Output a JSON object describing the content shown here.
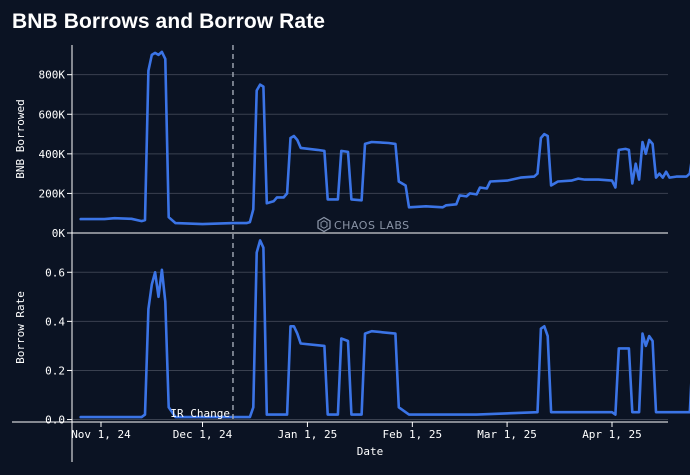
{
  "title": "BNB Borrows and Borrow Rate",
  "watermark": "CHAOS LABS",
  "colors": {
    "background": "#0b1323",
    "line": "#3b74e6",
    "grid": "#3a4150",
    "axis": "#ffffff"
  },
  "chart_data": [
    {
      "type": "line",
      "ylabel": "BNB Borrowed",
      "ylim": [
        0,
        950000
      ],
      "yticks": [
        0,
        200000,
        400000,
        600000,
        800000
      ],
      "ytick_labels": [
        "0K",
        "200K",
        "400K",
        "600K",
        "800K"
      ],
      "grid": true,
      "series": [
        {
          "points": [
            [
              "2024-10-26",
              70000
            ],
            [
              "2024-11-02",
              70000
            ],
            [
              "2024-11-05",
              75000
            ],
            [
              "2024-11-10",
              72000
            ],
            [
              "2024-11-13",
              60000
            ],
            [
              "2024-11-14",
              65000
            ],
            [
              "2024-11-15",
              820000
            ],
            [
              "2024-11-16",
              900000
            ],
            [
              "2024-11-17",
              910000
            ],
            [
              "2024-11-18",
              900000
            ],
            [
              "2024-11-19",
              915000
            ],
            [
              "2024-11-20",
              880000
            ],
            [
              "2024-11-21",
              80000
            ],
            [
              "2024-11-23",
              50000
            ],
            [
              "2024-12-01",
              45000
            ],
            [
              "2024-12-10",
              50000
            ],
            [
              "2024-12-14",
              50000
            ],
            [
              "2024-12-15",
              55000
            ],
            [
              "2024-12-16",
              120000
            ],
            [
              "2024-12-17",
              720000
            ],
            [
              "2024-12-18",
              750000
            ],
            [
              "2024-12-19",
              740000
            ],
            [
              "2024-12-20",
              150000
            ],
            [
              "2024-12-22",
              160000
            ],
            [
              "2024-12-23",
              180000
            ],
            [
              "2024-12-25",
              180000
            ],
            [
              "2024-12-26",
              200000
            ],
            [
              "2024-12-27",
              480000
            ],
            [
              "2024-12-28",
              490000
            ],
            [
              "2024-12-29",
              470000
            ],
            [
              "2024-12-30",
              430000
            ],
            [
              "2025-01-04",
              420000
            ],
            [
              "2025-01-06",
              415000
            ],
            [
              "2025-01-07",
              170000
            ],
            [
              "2025-01-10",
              170000
            ],
            [
              "2025-01-11",
              415000
            ],
            [
              "2025-01-13",
              410000
            ],
            [
              "2025-01-14",
              170000
            ],
            [
              "2025-01-17",
              165000
            ],
            [
              "2025-01-18",
              450000
            ],
            [
              "2025-01-20",
              460000
            ],
            [
              "2025-01-25",
              455000
            ],
            [
              "2025-01-27",
              450000
            ],
            [
              "2025-01-28",
              260000
            ],
            [
              "2025-01-30",
              240000
            ],
            [
              "2025-01-31",
              130000
            ],
            [
              "2025-02-05",
              135000
            ],
            [
              "2025-02-10",
              130000
            ],
            [
              "2025-02-11",
              140000
            ],
            [
              "2025-02-14",
              145000
            ],
            [
              "2025-02-15",
              190000
            ],
            [
              "2025-02-17",
              185000
            ],
            [
              "2025-02-18",
              200000
            ],
            [
              "2025-02-20",
              195000
            ],
            [
              "2025-02-21",
              230000
            ],
            [
              "2025-02-23",
              225000
            ],
            [
              "2025-02-24",
              260000
            ],
            [
              "2025-03-01",
              265000
            ],
            [
              "2025-03-05",
              280000
            ],
            [
              "2025-03-09",
              285000
            ],
            [
              "2025-03-10",
              300000
            ],
            [
              "2025-03-11",
              480000
            ],
            [
              "2025-03-12",
              500000
            ],
            [
              "2025-03-13",
              490000
            ],
            [
              "2025-03-14",
              240000
            ],
            [
              "2025-03-16",
              260000
            ],
            [
              "2025-03-20",
              265000
            ],
            [
              "2025-03-22",
              275000
            ],
            [
              "2025-03-24",
              270000
            ],
            [
              "2025-03-28",
              270000
            ],
            [
              "2025-04-01",
              265000
            ],
            [
              "2025-04-02",
              230000
            ],
            [
              "2025-04-03",
              420000
            ],
            [
              "2025-04-05",
              425000
            ],
            [
              "2025-04-06",
              420000
            ],
            [
              "2025-04-07",
              250000
            ],
            [
              "2025-04-08",
              350000
            ],
            [
              "2025-04-09",
              270000
            ],
            [
              "2025-04-10",
              460000
            ],
            [
              "2025-04-11",
              400000
            ],
            [
              "2025-04-12",
              470000
            ],
            [
              "2025-04-13",
              450000
            ],
            [
              "2025-04-14",
              280000
            ],
            [
              "2025-04-15",
              300000
            ],
            [
              "2025-04-16",
              280000
            ],
            [
              "2025-04-17",
              310000
            ],
            [
              "2025-04-18",
              280000
            ],
            [
              "2025-04-20",
              285000
            ],
            [
              "2025-04-23",
              285000
            ],
            [
              "2025-04-24",
              300000
            ],
            [
              "2025-04-25",
              420000
            ],
            [
              "2025-04-26",
              460000
            ],
            [
              "2025-04-27",
              430000
            ],
            [
              "2025-04-28",
              445000
            ]
          ]
        }
      ]
    },
    {
      "type": "line",
      "ylabel": "Borrow Rate",
      "xlabel": "Date",
      "ylim": [
        -0.01,
        0.76
      ],
      "yticks": [
        0.0,
        0.2,
        0.4,
        0.6
      ],
      "ytick_labels": [
        "0.0",
        "0.2",
        "0.4",
        "0.6"
      ],
      "xticks": [
        "2024-11-01",
        "2024-12-01",
        "2025-01-01",
        "2025-02-01",
        "2025-03-01",
        "2025-04-01"
      ],
      "xtick_labels": [
        "Nov 1, 24",
        "Dec 1, 24",
        "Jan 1, 25",
        "Feb 1, 25",
        "Mar 1, 25",
        "Apr 1, 25"
      ],
      "grid": true,
      "annotations": [
        {
          "date": "2024-12-10",
          "label": "IR Change",
          "style": "dashed-vertical"
        }
      ],
      "series": [
        {
          "points": [
            [
              "2024-10-26",
              0.01
            ],
            [
              "2024-11-13",
              0.01
            ],
            [
              "2024-11-14",
              0.02
            ],
            [
              "2024-11-15",
              0.45
            ],
            [
              "2024-11-16",
              0.55
            ],
            [
              "2024-11-17",
              0.6
            ],
            [
              "2024-11-18",
              0.5
            ],
            [
              "2024-11-19",
              0.61
            ],
            [
              "2024-11-20",
              0.48
            ],
            [
              "2024-11-21",
              0.05
            ],
            [
              "2024-11-23",
              0.01
            ],
            [
              "2024-12-15",
              0.01
            ],
            [
              "2024-12-16",
              0.05
            ],
            [
              "2024-12-17",
              0.68
            ],
            [
              "2024-12-18",
              0.73
            ],
            [
              "2024-12-19",
              0.7
            ],
            [
              "2024-12-20",
              0.02
            ],
            [
              "2024-12-26",
              0.02
            ],
            [
              "2024-12-27",
              0.38
            ],
            [
              "2024-12-28",
              0.38
            ],
            [
              "2024-12-29",
              0.35
            ],
            [
              "2024-12-30",
              0.31
            ],
            [
              "2025-01-06",
              0.3
            ],
            [
              "2025-01-07",
              0.02
            ],
            [
              "2025-01-10",
              0.02
            ],
            [
              "2025-01-11",
              0.33
            ],
            [
              "2025-01-13",
              0.32
            ],
            [
              "2025-01-14",
              0.02
            ],
            [
              "2025-01-17",
              0.02
            ],
            [
              "2025-01-18",
              0.35
            ],
            [
              "2025-01-20",
              0.36
            ],
            [
              "2025-01-27",
              0.35
            ],
            [
              "2025-01-28",
              0.05
            ],
            [
              "2025-01-31",
              0.02
            ],
            [
              "2025-02-20",
              0.02
            ],
            [
              "2025-03-10",
              0.03
            ],
            [
              "2025-03-11",
              0.37
            ],
            [
              "2025-03-12",
              0.38
            ],
            [
              "2025-03-13",
              0.34
            ],
            [
              "2025-03-14",
              0.03
            ],
            [
              "2025-04-01",
              0.03
            ],
            [
              "2025-04-02",
              0.02
            ],
            [
              "2025-04-03",
              0.29
            ],
            [
              "2025-04-06",
              0.29
            ],
            [
              "2025-04-07",
              0.03
            ],
            [
              "2025-04-09",
              0.03
            ],
            [
              "2025-04-10",
              0.35
            ],
            [
              "2025-04-11",
              0.3
            ],
            [
              "2025-04-12",
              0.34
            ],
            [
              "2025-04-13",
              0.32
            ],
            [
              "2025-04-14",
              0.03
            ],
            [
              "2025-04-24",
              0.03
            ],
            [
              "2025-04-25",
              0.3
            ],
            [
              "2025-04-26",
              0.33
            ],
            [
              "2025-04-27",
              0.29
            ],
            [
              "2025-04-28",
              0.32
            ]
          ]
        }
      ]
    }
  ]
}
